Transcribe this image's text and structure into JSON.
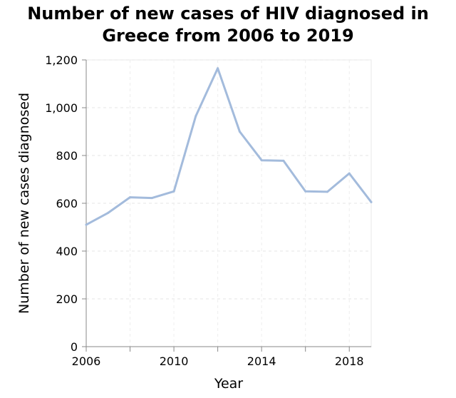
{
  "chart_data": {
    "type": "line",
    "title": [
      "Number of new cases of HIV diagnosed in",
      "Greece from 2006 to 2019"
    ],
    "xlabel": "Year",
    "ylabel": "Number of new cases diagnosed",
    "xlim": [
      2006,
      2019
    ],
    "ylim": [
      0,
      1200
    ],
    "x_ticks": [
      {
        "value": 2006,
        "label": "2006"
      },
      {
        "value": 2008,
        "label": ""
      },
      {
        "value": 2010,
        "label": "2010"
      },
      {
        "value": 2012,
        "label": ""
      },
      {
        "value": 2014,
        "label": "2014"
      },
      {
        "value": 2016,
        "label": ""
      },
      {
        "value": 2018,
        "label": "2018"
      }
    ],
    "y_ticks": [
      {
        "value": 0,
        "label": "0"
      },
      {
        "value": 200,
        "label": "200"
      },
      {
        "value": 400,
        "label": "400"
      },
      {
        "value": 600,
        "label": "600"
      },
      {
        "value": 800,
        "label": "800"
      },
      {
        "value": 1000,
        "label": "1,000"
      },
      {
        "value": 1200,
        "label": "1,200"
      }
    ],
    "grid": true,
    "series": [
      {
        "color": "#a3bbdc",
        "x": [
          2006,
          2007,
          2008,
          2009,
          2010,
          2011,
          2012,
          2013,
          2014,
          2015,
          2016,
          2017,
          2018,
          2019
        ],
        "values": [
          510,
          560,
          625,
          622,
          650,
          965,
          1165,
          900,
          780,
          778,
          650,
          648,
          725,
          605
        ]
      }
    ]
  }
}
